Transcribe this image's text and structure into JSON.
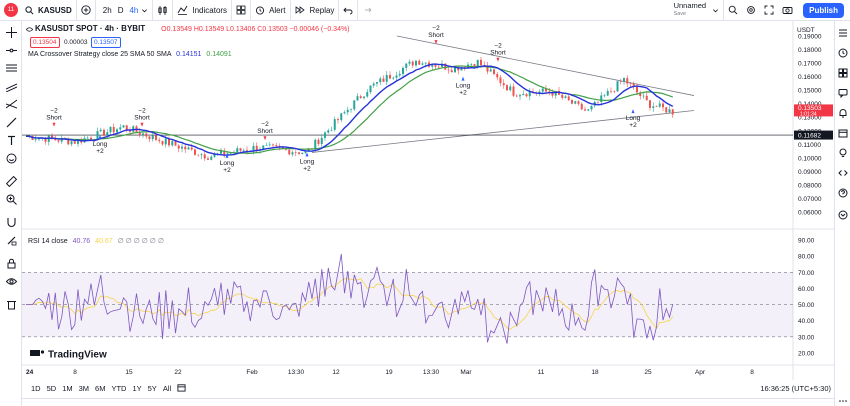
{
  "toolbar": {
    "avatar_badge": "11",
    "symbol": "KASUSD",
    "intervals": [
      "2h",
      "D",
      "4h"
    ],
    "active_interval": "4h",
    "indicators_label": "Indicators",
    "alert_label": "Alert",
    "replay_label": "Replay",
    "layout_name": "Unnamed",
    "layout_status": "Save",
    "publish_label": "Publish"
  },
  "legend": {
    "title": "KASUSDT SPOT · 4h · BYBIT",
    "ohlc": "O0.13549 H0.13549 L0.13406 C0.13503 −0.00046 (−0.34%)",
    "bid": "0.13504",
    "spread": "0.00003",
    "ask": "0.13507",
    "strategy_label": "MA Crossover Strategy close 25 SMA 50 SMA",
    "strategy_val1": "0.14151",
    "strategy_val2": "0.14091",
    "rsi_label": "RSI 14 close",
    "rsi_value": "40.76",
    "rsi_ma_value": "40.67",
    "rsi_extras": "∅ ∅ ∅ ∅ ∅ ∅"
  },
  "axis": {
    "currency": "USDT",
    "price_ticks": [
      "0.19000",
      "0.18000",
      "0.17000",
      "0.16000",
      "0.15000",
      "0.14000",
      "0.13000",
      "0.12000",
      "0.11000",
      "0.10000",
      "0.09000",
      "0.08000",
      "0.07000",
      "0.06000"
    ],
    "rsi_ticks": [
      "90.00",
      "80.00",
      "70.00",
      "60.00",
      "50.00",
      "40.00",
      "30.00",
      "20.00"
    ],
    "last_price": "0.13503",
    "last_price_sub": "1:01:34",
    "hline_price": "0.11682",
    "time_labels": [
      "24",
      "8",
      "15",
      "22",
      "Feb",
      "13:30",
      "12",
      "19",
      "13:30",
      "Mar",
      "11",
      "18",
      "25",
      "Apr",
      "8"
    ]
  },
  "signals": [
    {
      "kind": "short",
      "top": "−2",
      "bottom": "Short"
    },
    {
      "kind": "long",
      "top": "Long",
      "bottom": "+2"
    },
    {
      "kind": "short",
      "top": "−2",
      "bottom": "Short"
    },
    {
      "kind": "long",
      "top": "Long",
      "bottom": "+2"
    },
    {
      "kind": "short",
      "top": "−2",
      "bottom": "Short"
    },
    {
      "kind": "long",
      "top": "Long",
      "bottom": "+2"
    },
    {
      "kind": "short",
      "top": "−2",
      "bottom": "Short"
    },
    {
      "kind": "long",
      "top": "Long",
      "bottom": "+2"
    },
    {
      "kind": "short",
      "top": "−2",
      "bottom": "Short"
    },
    {
      "kind": "long",
      "top": "Long",
      "bottom": "+2"
    }
  ],
  "watermark": "TradingView",
  "bottom": {
    "ranges": [
      "1D",
      "5D",
      "1M",
      "3M",
      "6M",
      "YTD",
      "1Y",
      "5Y",
      "All"
    ],
    "clock": "16:36:25 (UTC+5:30)"
  },
  "colors": {
    "sma_fast": "#2633d9",
    "sma_slow": "#43a047",
    "up": "#26a69a",
    "down": "#ef5350",
    "rsi": "#7e57c2",
    "rsi_ma": "#f7d449",
    "accent": "#2962ff"
  }
}
